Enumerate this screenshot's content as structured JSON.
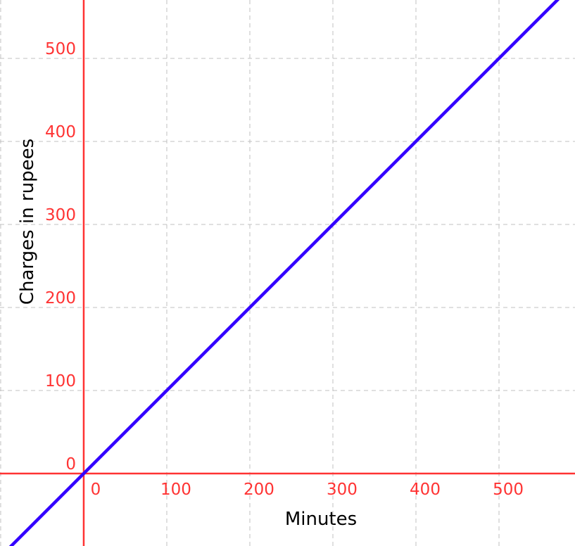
{
  "chart_data": {
    "type": "line",
    "title": "",
    "xlabel": "Minutes",
    "ylabel": "Charges in rupees",
    "xlim": [
      -100.8,
      591.5
    ],
    "ylim": [
      -87.3,
      570.3
    ],
    "grid": true,
    "x_ticks": [
      0,
      100,
      200,
      300,
      400,
      500
    ],
    "y_ticks": [
      0,
      100,
      200,
      300,
      400,
      500
    ],
    "x_tick_labels": [
      "0",
      "100",
      "200",
      "300",
      "400",
      "500"
    ],
    "y_tick_labels": [
      "0",
      "100",
      "200",
      "300",
      "400",
      "500"
    ],
    "series": [
      {
        "x": [
          -100.8,
          591.5
        ],
        "y": [
          -100.8,
          591.5
        ],
        "color": "#3300ff",
        "equation": "y = x"
      }
    ],
    "colors": {
      "axes": "#ff3333",
      "ticks": "#ff3333",
      "grid": "#c0c0c0",
      "line": "#3300ff"
    }
  }
}
